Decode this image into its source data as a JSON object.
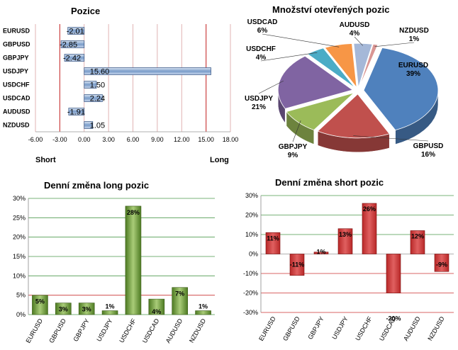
{
  "chart_data": [
    {
      "type": "bar",
      "orientation": "horizontal",
      "title": "Pozice",
      "categories": [
        "EURUSD",
        "GBPUSD",
        "GBPJPY",
        "USDJPY",
        "USDCHF",
        "USDCAD",
        "AUDUSD",
        "NZDUSD"
      ],
      "values": [
        -2.01,
        -2.85,
        -2.42,
        15.6,
        1.5,
        2.24,
        -1.91,
        1.05
      ],
      "value_labels": [
        "-2.01",
        "-2.85",
        "-2.42",
        "15.60",
        "1.50",
        "2.24",
        "-1.91",
        "1.05"
      ],
      "xlim": [
        -6,
        18
      ],
      "xticks": [
        "-6.00",
        "-3.00",
        "0.00",
        "3.00",
        "6.00",
        "9.00",
        "12.00",
        "15.00",
        "18.00"
      ],
      "xtick_values": [
        -6,
        -3,
        0,
        3,
        6,
        9,
        12,
        15,
        18
      ],
      "xlabel_left": "Short",
      "xlabel_right": "Long",
      "reference_lines": [
        -3,
        15
      ],
      "colors": {
        "bar": "#7a9cc9",
        "reference": "#cc4444",
        "grid": "#d9a0a0"
      }
    },
    {
      "type": "pie",
      "title": "Množství otevřených pozic",
      "slices": [
        {
          "name": "EURUSD",
          "value": 39,
          "label": "39%",
          "color": "#4f81bd"
        },
        {
          "name": "GBPUSD",
          "value": 16,
          "label": "16%",
          "color": "#c0504d"
        },
        {
          "name": "GBPJPY",
          "value": 9,
          "label": "9%",
          "color": "#9bbb59"
        },
        {
          "name": "USDJPY",
          "value": 21,
          "label": "21%",
          "color": "#8064a2"
        },
        {
          "name": "USDCHF",
          "value": 4,
          "label": "4%",
          "color": "#4bacc6"
        },
        {
          "name": "USDCAD",
          "value": 6,
          "label": "6%",
          "color": "#f79646"
        },
        {
          "name": "AUDUSD",
          "value": 4,
          "label": "4%",
          "color": "#a5b8d8"
        },
        {
          "name": "NZDUSD",
          "value": 1,
          "label": "1%",
          "color": "#d99694"
        }
      ]
    },
    {
      "type": "bar",
      "title": "Denní změna long pozic",
      "categories": [
        "EURUSD",
        "GBPUSD",
        "GBPJPY",
        "USDJPY",
        "USDCHF",
        "USDCAD",
        "AUDUSD",
        "NZDUSD"
      ],
      "values": [
        5,
        3,
        3,
        1,
        28,
        4,
        7,
        1
      ],
      "value_labels": [
        "5%",
        "3%",
        "3%",
        "1%",
        "28%",
        "4%",
        "7%",
        "1%"
      ],
      "ylim": [
        0,
        30
      ],
      "yticks": [
        "0%",
        "5%",
        "10%",
        "15%",
        "20%",
        "25%",
        "30%"
      ],
      "ytick_values": [
        0,
        5,
        10,
        15,
        20,
        25,
        30
      ],
      "reference_line": 5,
      "colors": {
        "bar": "#6e9a3a",
        "grid": "#4e9a4e",
        "reference": "#cc3333"
      }
    },
    {
      "type": "bar",
      "title": "Denní změna short pozic",
      "categories": [
        "EURUSD",
        "GBPUSD",
        "GBPJPY",
        "USDJPY",
        "USDCHF",
        "USDCAD",
        "AUDUSD",
        "NZDUSD"
      ],
      "values": [
        11,
        -11,
        1,
        13,
        26,
        -20,
        12,
        -9
      ],
      "value_labels": [
        "11%",
        "-11%",
        "1%",
        "13%",
        "26%",
        "-20%",
        "12%",
        "-9%"
      ],
      "ylim": [
        -30,
        30
      ],
      "yticks": [
        "-30%",
        "-20%",
        "-10%",
        "0%",
        "10%",
        "20%",
        "30%"
      ],
      "ytick_values": [
        -30,
        -20,
        -10,
        0,
        10,
        20,
        30
      ],
      "colors": {
        "bar": "#d03a3a",
        "grid_pos": "#4e9a4e",
        "grid_neg": "#cc3333"
      }
    }
  ]
}
